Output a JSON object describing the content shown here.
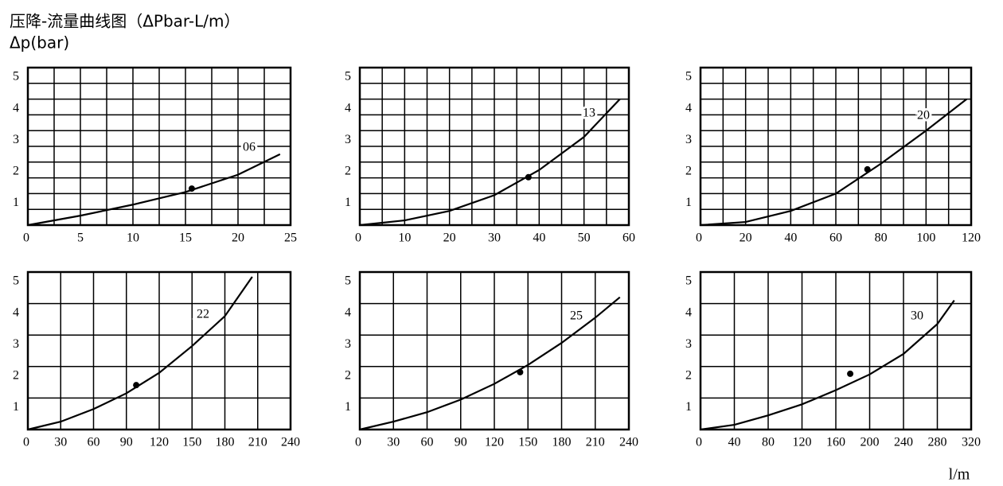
{
  "title": "压降-流量曲线图（ΔPbar-L/m）",
  "y_label": "Δp(bar)",
  "x_label": "l/m",
  "chart_data": [
    {
      "type": "line",
      "xlim": [
        0,
        25
      ],
      "ylim": [
        0,
        5
      ],
      "xticks": [
        0,
        5,
        10,
        15,
        20,
        25
      ],
      "yticks": [
        1,
        2,
        3,
        4,
        5
      ],
      "xgrid": [
        2.5,
        5,
        7.5,
        10,
        12.5,
        15,
        17.5,
        20,
        22.5
      ],
      "ygrid": [
        0.5,
        1,
        1.5,
        2,
        2.5,
        3,
        3.5,
        4,
        4.5
      ],
      "series": [
        {
          "name": "06",
          "color": "#000000",
          "x": [
            0,
            5,
            10,
            15,
            20,
            24
          ],
          "values": [
            0,
            0.3,
            0.65,
            1.05,
            1.6,
            2.25
          ]
        }
      ],
      "point": {
        "x": 15.6,
        "y": 1.16
      }
    },
    {
      "type": "line",
      "xlim": [
        0,
        60
      ],
      "ylim": [
        0,
        5
      ],
      "xticks": [
        0,
        10,
        20,
        30,
        40,
        50,
        60
      ],
      "yticks": [
        1,
        2,
        3,
        4,
        5
      ],
      "xgrid": [
        5,
        10,
        15,
        20,
        25,
        30,
        35,
        40,
        45,
        50,
        55
      ],
      "ygrid": [
        0.5,
        1,
        1.5,
        2,
        2.5,
        3,
        3.5,
        4,
        4.5
      ],
      "series": [
        {
          "name": "13",
          "color": "#000000",
          "x": [
            0,
            10,
            20,
            30,
            40,
            50,
            58
          ],
          "values": [
            0,
            0.15,
            0.45,
            0.95,
            1.75,
            2.8,
            4.0
          ]
        }
      ],
      "point": {
        "x": 37.6,
        "y": 1.52
      }
    },
    {
      "type": "line",
      "xlim": [
        0,
        120
      ],
      "ylim": [
        0,
        5
      ],
      "xticks": [
        0,
        20,
        40,
        60,
        80,
        100,
        120
      ],
      "yticks": [
        1,
        2,
        3,
        4,
        5
      ],
      "xgrid": [
        10,
        20,
        30,
        40,
        50,
        60,
        70,
        80,
        90,
        100,
        110
      ],
      "ygrid": [
        0.5,
        1,
        1.5,
        2,
        2.5,
        3,
        3.5,
        4,
        4.5
      ],
      "series": [
        {
          "name": "20",
          "color": "#000000",
          "x": [
            0,
            20,
            40,
            60,
            80,
            100,
            118
          ],
          "values": [
            0,
            0.1,
            0.45,
            1.0,
            1.95,
            3.0,
            4.0
          ]
        }
      ],
      "point": {
        "x": 74,
        "y": 1.77
      }
    },
    {
      "type": "line",
      "xlim": [
        0,
        240
      ],
      "ylim": [
        0,
        5
      ],
      "xticks": [
        0,
        30,
        60,
        90,
        120,
        150,
        180,
        210,
        240
      ],
      "yticks": [
        1,
        2,
        3,
        4,
        5
      ],
      "xgrid": [
        30,
        60,
        90,
        120,
        150,
        180,
        210
      ],
      "ygrid": [
        1,
        2,
        3,
        4
      ],
      "series": [
        {
          "name": "22",
          "color": "#000000",
          "x": [
            0,
            30,
            60,
            90,
            120,
            150,
            180,
            205
          ],
          "values": [
            0,
            0.25,
            0.65,
            1.15,
            1.8,
            2.65,
            3.6,
            4.85
          ]
        }
      ],
      "point": {
        "x": 99,
        "y": 1.41
      }
    },
    {
      "type": "line",
      "xlim": [
        0,
        240
      ],
      "ylim": [
        0,
        5
      ],
      "xticks": [
        0,
        30,
        60,
        90,
        120,
        150,
        180,
        210,
        240
      ],
      "yticks": [
        1,
        2,
        3,
        4,
        5
      ],
      "xgrid": [
        30,
        60,
        90,
        120,
        150,
        180,
        210
      ],
      "ygrid": [
        1,
        2,
        3,
        4
      ],
      "series": [
        {
          "name": "25",
          "color": "#000000",
          "x": [
            0,
            30,
            60,
            90,
            120,
            150,
            180,
            210,
            232
          ],
          "values": [
            0,
            0.25,
            0.55,
            0.95,
            1.45,
            2.05,
            2.75,
            3.55,
            4.2
          ]
        }
      ],
      "point": {
        "x": 143,
        "y": 1.82
      }
    },
    {
      "type": "line",
      "xlim": [
        0,
        320
      ],
      "ylim": [
        0,
        5
      ],
      "xticks": [
        0,
        40,
        80,
        120,
        160,
        200,
        240,
        280,
        320
      ],
      "yticks": [
        1,
        2,
        3,
        4,
        5
      ],
      "xgrid": [
        40,
        80,
        120,
        160,
        200,
        240,
        280
      ],
      "ygrid": [
        1,
        2,
        3,
        4
      ],
      "series": [
        {
          "name": "30",
          "color": "#000000",
          "x": [
            0,
            40,
            80,
            120,
            160,
            200,
            240,
            280,
            300
          ],
          "values": [
            0,
            0.15,
            0.45,
            0.8,
            1.25,
            1.75,
            2.4,
            3.35,
            4.1
          ]
        }
      ],
      "point": {
        "x": 177,
        "y": 1.77
      }
    }
  ]
}
